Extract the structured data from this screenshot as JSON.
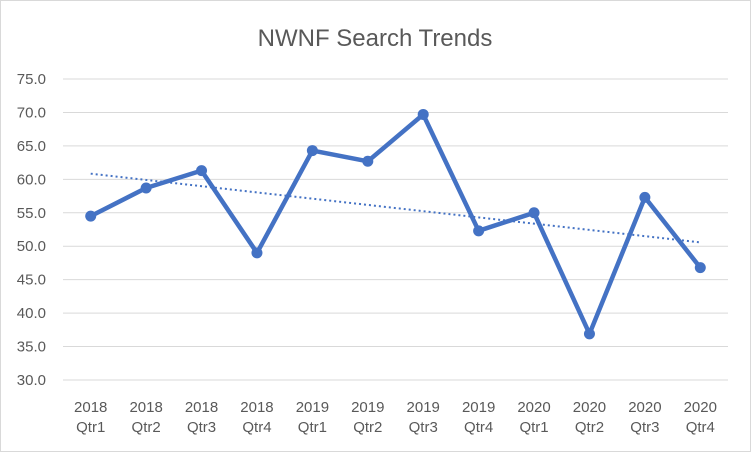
{
  "chart_data": {
    "type": "line",
    "title": "NWNF Search Trends",
    "xlabel": "",
    "ylabel": "",
    "categories": [
      [
        "2018",
        "Qtr1"
      ],
      [
        "2018",
        "Qtr2"
      ],
      [
        "2018",
        "Qtr3"
      ],
      [
        "2018",
        "Qtr4"
      ],
      [
        "2019",
        "Qtr1"
      ],
      [
        "2019",
        "Qtr2"
      ],
      [
        "2019",
        "Qtr3"
      ],
      [
        "2019",
        "Qtr4"
      ],
      [
        "2020",
        "Qtr1"
      ],
      [
        "2020",
        "Qtr2"
      ],
      [
        "2020",
        "Qtr3"
      ],
      [
        "2020",
        "Qtr4"
      ]
    ],
    "series": [
      {
        "values": [
          54.5,
          58.7,
          61.3,
          49.0,
          64.3,
          62.7,
          69.7,
          52.3,
          55.0,
          36.9,
          57.3,
          46.8
        ],
        "color": "#4472c4",
        "marker": "circle"
      }
    ],
    "trendline": {
      "type": "linear",
      "style": "dotted",
      "color": "#4472c4"
    },
    "ylim": [
      30,
      75
    ],
    "yticks": [
      "30.0",
      "35.0",
      "40.0",
      "45.0",
      "50.0",
      "55.0",
      "60.0",
      "65.0",
      "70.0",
      "75.0"
    ],
    "grid": true,
    "legend": "none"
  }
}
